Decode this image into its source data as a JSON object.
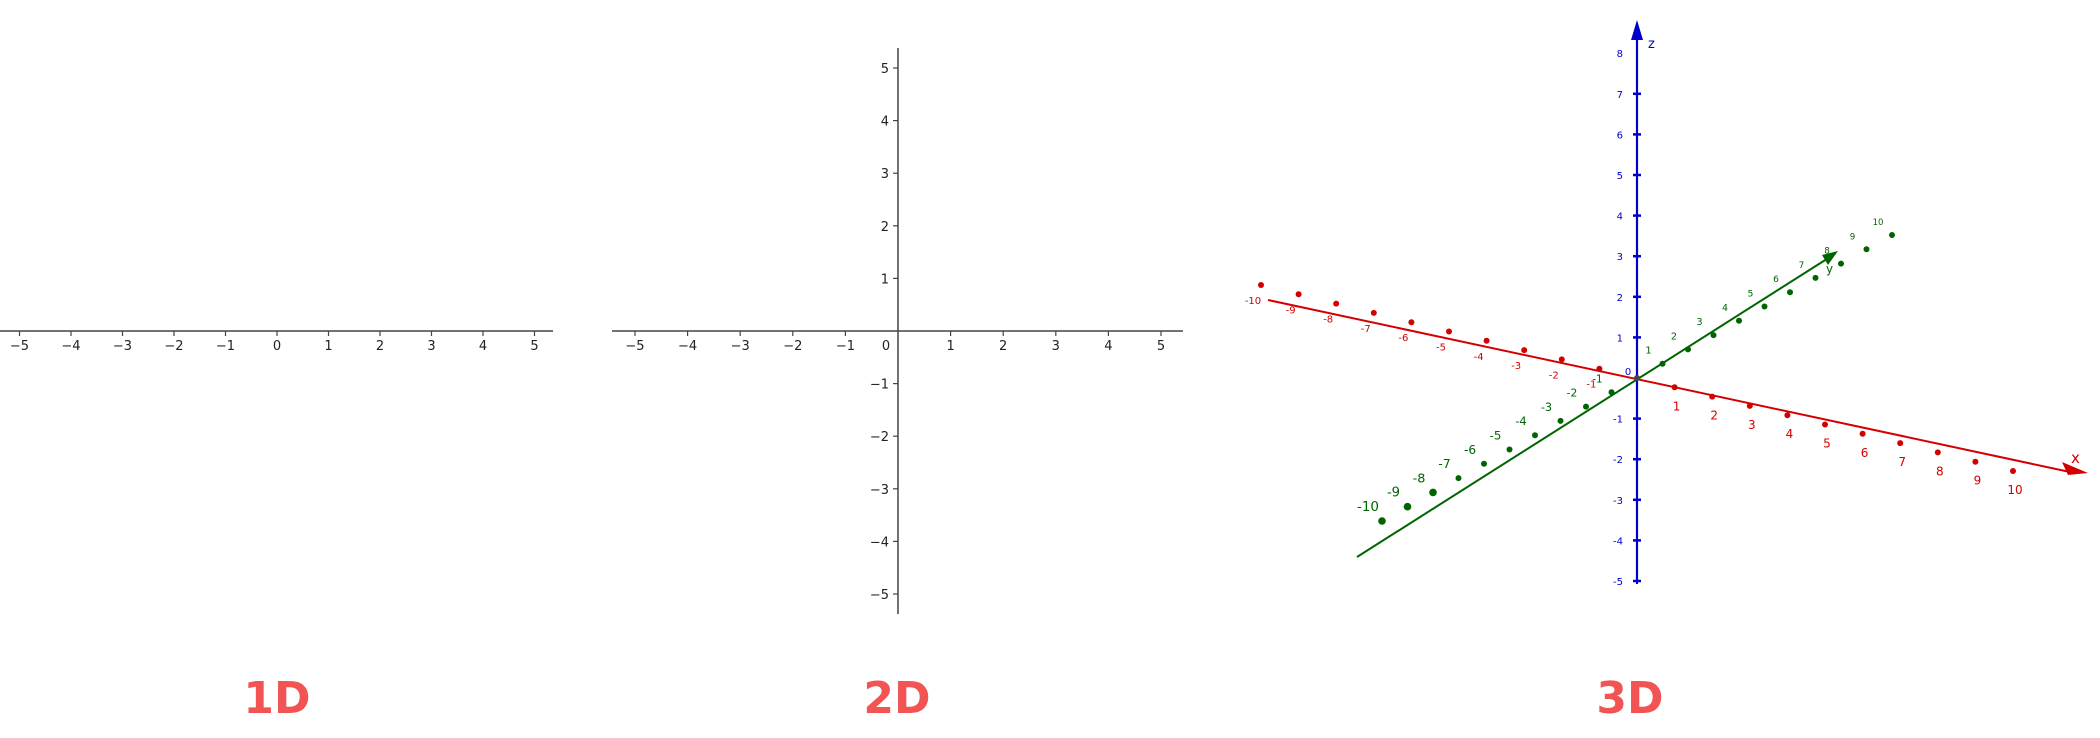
{
  "panels": {
    "one_d": {
      "caption": "1D",
      "x_ticks": [
        "−5",
        "−4",
        "−3",
        "−2",
        "−1",
        "0",
        "1",
        "2",
        "3",
        "4",
        "5"
      ]
    },
    "two_d": {
      "caption": "2D",
      "x_ticks": [
        "−5",
        "−4",
        "−3",
        "−2",
        "−1",
        "0",
        "1",
        "2",
        "3",
        "4",
        "5"
      ],
      "y_ticks": [
        "5",
        "4",
        "3",
        "2",
        "1",
        "−1",
        "−2",
        "−3",
        "−4",
        "−5"
      ]
    },
    "three_d": {
      "caption": "3D",
      "x_axis_label": "x",
      "y_axis_label": "y",
      "z_axis_label": "z",
      "origin_label": "0",
      "x_ticks": [
        "-10",
        "-9",
        "-8",
        "-7",
        "-6",
        "-5",
        "-4",
        "-3",
        "-2",
        "-1",
        "1",
        "2",
        "3",
        "4",
        "5",
        "6",
        "7",
        "8",
        "9",
        "10"
      ],
      "y_ticks": [
        "-10",
        "-9",
        "-8",
        "-7",
        "-6",
        "-5",
        "-4",
        "-3",
        "-2",
        "-1",
        "1",
        "2",
        "3",
        "4",
        "5",
        "6",
        "7",
        "8",
        "9",
        "10"
      ],
      "z_ticks": [
        "8",
        "7",
        "6",
        "5",
        "4",
        "3",
        "2",
        "1",
        "-1",
        "-2",
        "-3",
        "-4",
        "-5"
      ]
    }
  },
  "colors": {
    "caption": "#f25454",
    "axis_2d": "#444444",
    "x_axis_3d": "#d40000",
    "y_axis_3d": "#006400",
    "z_axis_3d": "#0000cc"
  }
}
